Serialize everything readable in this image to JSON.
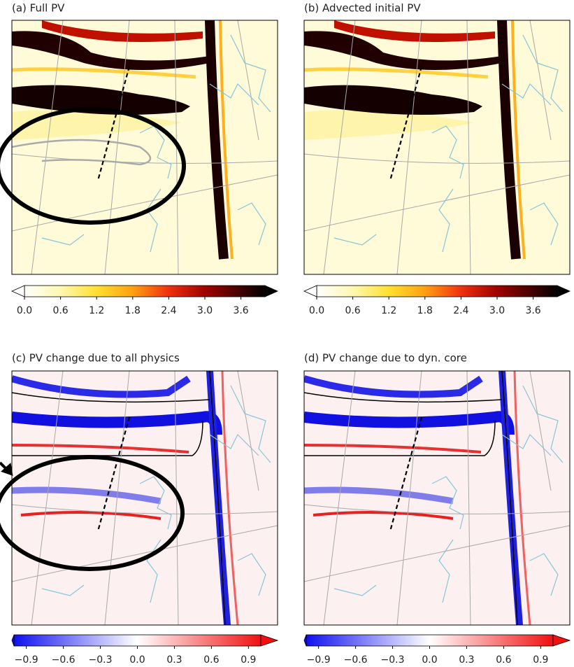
{
  "panels": [
    {
      "title": "(a) Full PV",
      "colorbar": {
        "lim": [
          0,
          4.0
        ],
        "ticks": [
          {
            "value": 0,
            "label": "0.0"
          },
          {
            "value": 0.6,
            "label": "0.6"
          },
          {
            "value": 1.2,
            "label": "1.2"
          },
          {
            "value": 1.8,
            "label": "1.8"
          },
          {
            "value": 2.4,
            "label": "2.4"
          },
          {
            "value": 3.0,
            "label": "3.0"
          },
          {
            "value": 3.6,
            "label": "3.6"
          }
        ]
      }
    },
    {
      "title": "(b) Advected initial PV",
      "colorbar": {
        "lim": [
          0,
          4.0
        ],
        "ticks": [
          {
            "value": 0,
            "label": "0.0"
          },
          {
            "value": 0.6,
            "label": "0.6"
          },
          {
            "value": 1.2,
            "label": "1.2"
          },
          {
            "value": 1.8,
            "label": "1.8"
          },
          {
            "value": 2.4,
            "label": "2.4"
          },
          {
            "value": 3.0,
            "label": "3.0"
          },
          {
            "value": 3.6,
            "label": "3.6"
          }
        ]
      }
    },
    {
      "title": "(c) PV change due to all physics",
      "colorbar": {
        "lim": [
          -1.0,
          1.0
        ],
        "ticks": [
          {
            "value": -0.9,
            "label": "−0.9"
          },
          {
            "value": -0.6,
            "label": "−0.6"
          },
          {
            "value": -0.3,
            "label": "−0.3"
          },
          {
            "value": 0,
            "label": "0.0"
          },
          {
            "value": 0.3,
            "label": "0.3"
          },
          {
            "value": 0.6,
            "label": "0.6"
          },
          {
            "value": 0.9,
            "label": "0.9"
          }
        ]
      }
    },
    {
      "title": "(d) PV change due to dyn. core",
      "colorbar": {
        "lim": [
          -1.0,
          1.0
        ],
        "ticks": [
          {
            "value": -0.9,
            "label": "−0.9"
          },
          {
            "value": -0.6,
            "label": "−0.6"
          },
          {
            "value": -0.3,
            "label": "−0.3"
          },
          {
            "value": 0,
            "label": "0.0"
          },
          {
            "value": 0.3,
            "label": "0.3"
          },
          {
            "value": 0.6,
            "label": "0.6"
          },
          {
            "value": 0.9,
            "label": "0.9"
          }
        ]
      }
    }
  ]
}
